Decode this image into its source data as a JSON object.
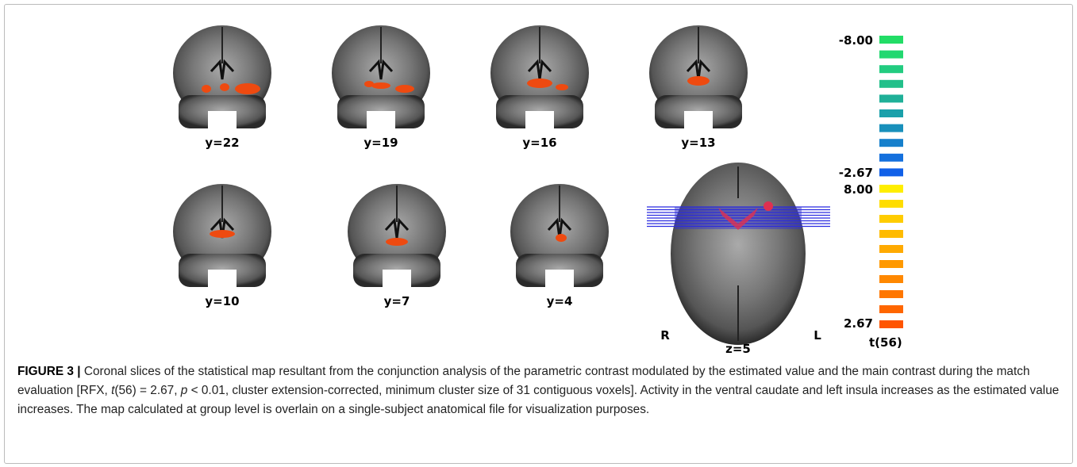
{
  "figure": {
    "coronal_labels": [
      "y=22",
      "y=19",
      "y=16",
      "y=13",
      "y=10",
      "y=7",
      "y=4"
    ],
    "axial_label": "z=5",
    "orientation": {
      "right": "R",
      "left": "L"
    },
    "colorbar": {
      "negative_max": "-8.00",
      "negative_min": "-2.67",
      "positive_max": "8.00",
      "positive_min": "2.67",
      "title": "t(56)"
    }
  },
  "caption": {
    "label": "FIGURE 3 |",
    "parts": [
      {
        "text": " Coronal slices of the statistical map resultant from the conjunction analysis of the parametric contrast modulated by the estimated value and the main contrast during the match evaluation [RFX, ",
        "italic": false
      },
      {
        "text": "t",
        "italic": true
      },
      {
        "text": "(56) = 2.67, ",
        "italic": false
      },
      {
        "text": "p",
        "italic": true
      },
      {
        "text": " < 0.01, cluster extension-corrected, minimum cluster size of 31 contiguous voxels]. Activity in the ventral caudate and left insula increases as the estimated value increases. The map calculated at group level is overlain on a single-subject anatomical file for visualization purposes.",
        "italic": false
      }
    ]
  }
}
